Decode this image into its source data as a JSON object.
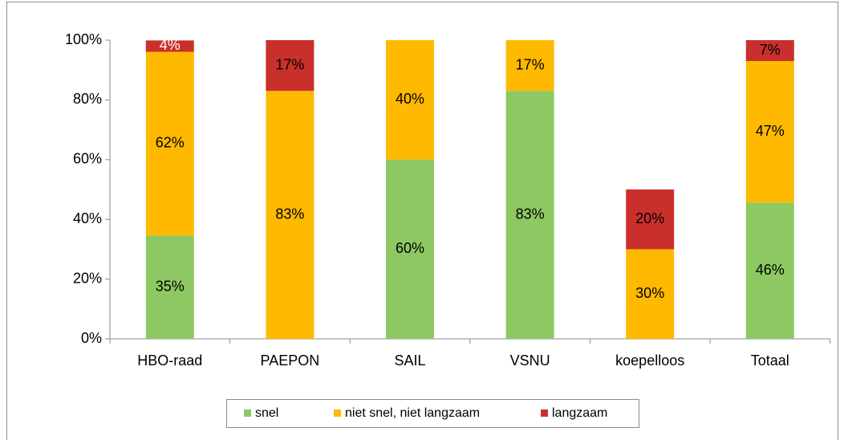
{
  "chart_data": {
    "type": "stacked_bar",
    "categories": [
      "HBO-raad",
      "PAEPON",
      "SAIL",
      "VSNU",
      "koepelloos",
      "Totaal"
    ],
    "series": [
      {
        "name": "snel",
        "color": "#8dc863",
        "values": [
          34.6,
          null,
          60,
          83,
          null,
          45.6
        ],
        "value_labels": [
          "35%",
          null,
          "60%",
          "83%",
          null,
          "46%"
        ]
      },
      {
        "name": "niet snel, niet langzaam",
        "color": "#ffb900",
        "values": [
          61.5,
          83,
          40,
          17,
          30,
          47.4
        ],
        "value_labels": [
          "62%",
          "83%",
          "40%",
          "17%",
          "30%",
          "47%"
        ]
      },
      {
        "name": "langzaam",
        "color": "#c9302c",
        "values": [
          3.8,
          17,
          null,
          null,
          20,
          7
        ],
        "value_labels": [
          "4%",
          "17%",
          null,
          null,
          "20%",
          "7%"
        ]
      }
    ],
    "koepelloos_note": null,
    "ylim": [
      0,
      100
    ],
    "yticks": [
      {
        "value": 0,
        "label": "0%"
      },
      {
        "value": 20,
        "label": "20%"
      },
      {
        "value": 40,
        "label": "40%"
      },
      {
        "value": 60,
        "label": "60%"
      },
      {
        "value": 80,
        "label": "80%"
      },
      {
        "value": 100,
        "label": "100%"
      }
    ],
    "legend": "bottom"
  }
}
